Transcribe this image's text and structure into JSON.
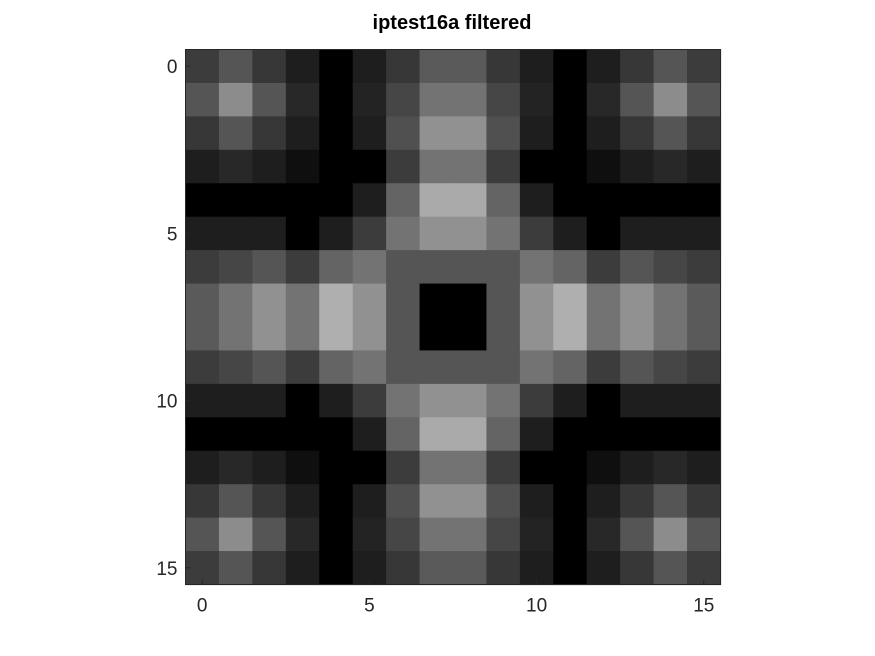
{
  "chart_data": {
    "type": "heatmap",
    "title": "iptest16a  filtered",
    "colormap": "gray",
    "x_ticks": [
      "0",
      "5",
      "10",
      "15"
    ],
    "y_ticks": [
      "0",
      "5",
      "10",
      "15"
    ],
    "xlim": [
      -0.5,
      15.5
    ],
    "ylim": [
      15.5,
      -0.5
    ],
    "grid": false,
    "values": [
      [
        60,
        85,
        55,
        30,
        0,
        30,
        55,
        90,
        90,
        55,
        30,
        0,
        30,
        55,
        85,
        60
      ],
      [
        85,
        140,
        85,
        40,
        0,
        35,
        70,
        115,
        115,
        70,
        35,
        0,
        40,
        85,
        140,
        85
      ],
      [
        55,
        85,
        55,
        30,
        0,
        30,
        80,
        145,
        145,
        80,
        30,
        0,
        30,
        55,
        85,
        55
      ],
      [
        30,
        40,
        30,
        15,
        0,
        0,
        60,
        115,
        115,
        60,
        0,
        0,
        15,
        30,
        40,
        30
      ],
      [
        0,
        0,
        0,
        0,
        0,
        30,
        100,
        170,
        170,
        100,
        30,
        0,
        0,
        0,
        0,
        0
      ],
      [
        30,
        30,
        30,
        0,
        30,
        60,
        115,
        145,
        145,
        115,
        60,
        30,
        0,
        30,
        30,
        30
      ],
      [
        60,
        70,
        85,
        60,
        100,
        115,
        85,
        85,
        85,
        85,
        115,
        100,
        60,
        85,
        70,
        60
      ],
      [
        90,
        115,
        145,
        115,
        175,
        145,
        85,
        0,
        0,
        85,
        145,
        175,
        115,
        145,
        115,
        90
      ],
      [
        90,
        115,
        145,
        115,
        175,
        145,
        85,
        0,
        0,
        85,
        145,
        175,
        115,
        145,
        115,
        90
      ],
      [
        60,
        70,
        85,
        60,
        100,
        115,
        85,
        85,
        85,
        85,
        115,
        100,
        60,
        85,
        70,
        60
      ],
      [
        30,
        30,
        30,
        0,
        30,
        60,
        115,
        145,
        145,
        115,
        60,
        30,
        0,
        30,
        30,
        30
      ],
      [
        0,
        0,
        0,
        0,
        0,
        30,
        100,
        170,
        170,
        100,
        30,
        0,
        0,
        0,
        0,
        0
      ],
      [
        30,
        40,
        30,
        15,
        0,
        0,
        60,
        115,
        115,
        60,
        0,
        0,
        15,
        30,
        40,
        30
      ],
      [
        55,
        85,
        55,
        30,
        0,
        30,
        80,
        145,
        145,
        80,
        30,
        0,
        30,
        55,
        85,
        55
      ],
      [
        85,
        140,
        85,
        40,
        0,
        35,
        70,
        115,
        115,
        70,
        35,
        0,
        40,
        85,
        140,
        85
      ],
      [
        60,
        85,
        55,
        30,
        0,
        30,
        55,
        90,
        90,
        55,
        30,
        0,
        30,
        55,
        85,
        60
      ]
    ]
  },
  "colors": {
    "background": "#ffffff",
    "axis": "#262626",
    "title": "#000000"
  }
}
